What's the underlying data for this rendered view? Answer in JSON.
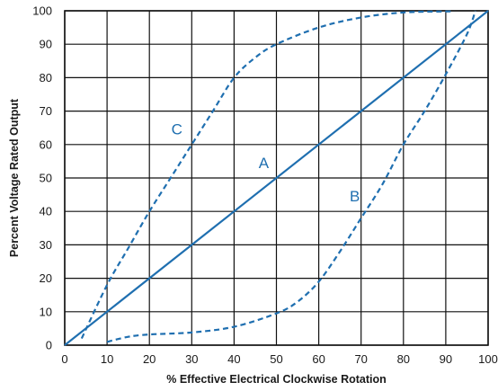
{
  "chart_data": {
    "type": "line",
    "title": "",
    "xlabel": "% Effective Electrical Clockwise Rotation",
    "ylabel": "Percent Voltage Rated Output",
    "xlim": [
      0,
      100
    ],
    "ylim": [
      0,
      100
    ],
    "grid": true,
    "x_ticks": [
      "0",
      "10",
      "20",
      "30",
      "40",
      "50",
      "60",
      "70",
      "80",
      "90",
      "100"
    ],
    "y_ticks": [
      "0",
      "10",
      "20",
      "30",
      "40",
      "50",
      "60",
      "70",
      "80",
      "90",
      "100"
    ],
    "series_color": "#1f6fb0",
    "series": [
      {
        "name": "A",
        "style": "solid",
        "x": [
          0,
          100
        ],
        "y": [
          0,
          100
        ],
        "label_at": [
          47,
          53
        ]
      },
      {
        "name": "B",
        "style": "dashed",
        "x": [
          10,
          15,
          20,
          30,
          40,
          50,
          55,
          60,
          65,
          70,
          75,
          80,
          85,
          90,
          95,
          97
        ],
        "y": [
          1,
          2.5,
          3.2,
          3.8,
          5.5,
          9.5,
          13,
          19,
          28,
          38,
          48,
          60,
          70,
          81,
          93,
          100
        ],
        "label_at": [
          68.5,
          43
        ]
      },
      {
        "name": "C",
        "style": "dashed",
        "x": [
          4,
          10,
          15,
          20,
          25,
          30,
          35,
          40,
          45,
          50,
          60,
          70,
          80,
          90,
          92
        ],
        "y": [
          2,
          18,
          29,
          40,
          50,
          60,
          70,
          80,
          86,
          90,
          95,
          98,
          99.5,
          99.8,
          99.8
        ],
        "label_at": [
          26.5,
          63
        ]
      }
    ]
  }
}
